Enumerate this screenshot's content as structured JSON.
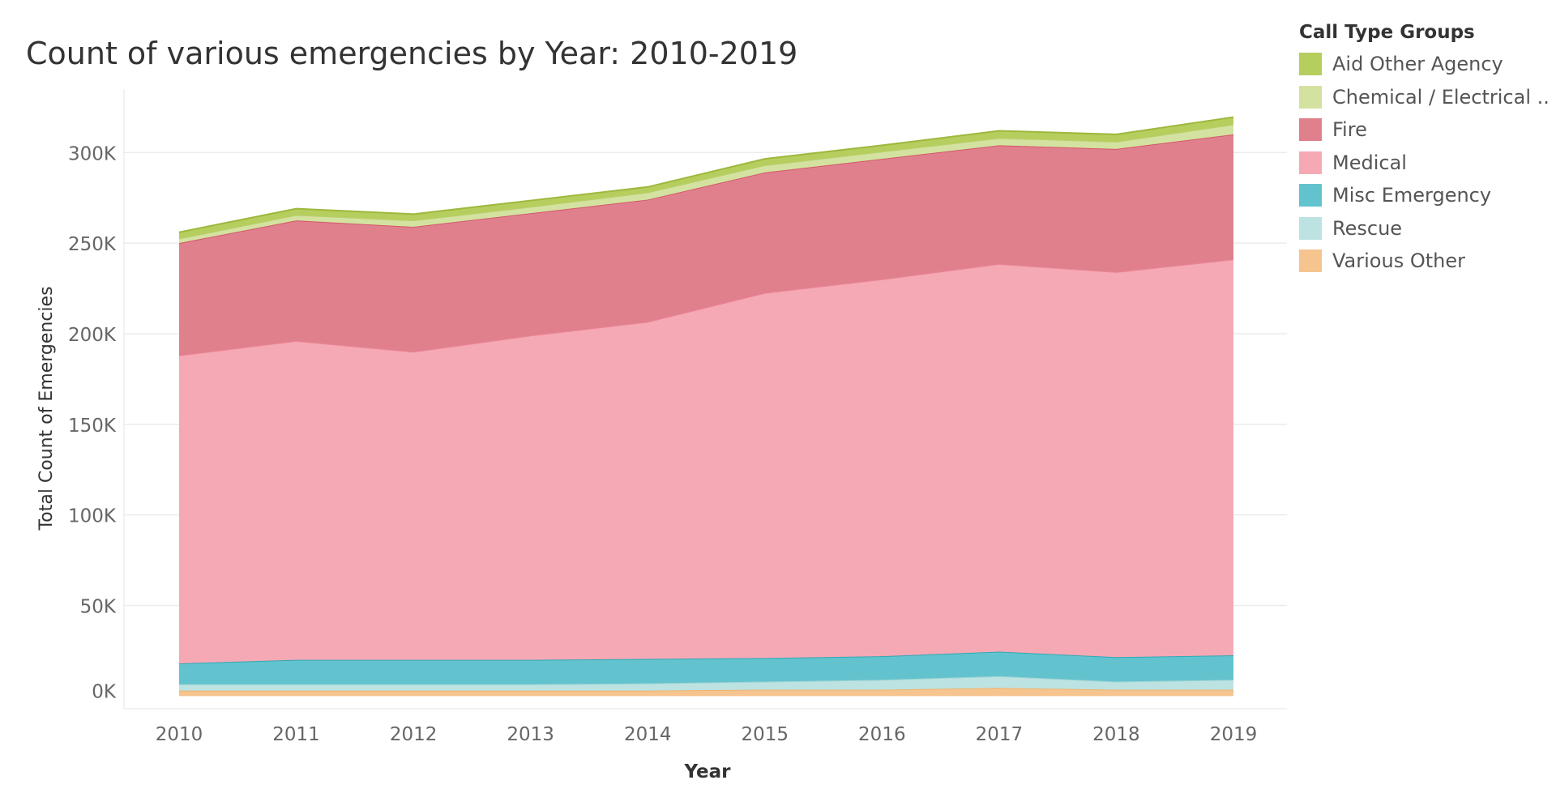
{
  "chart_data": {
    "type": "area",
    "stacked": true,
    "title": "Count of various emergencies by Year: 2010-2019",
    "xlabel": "Year",
    "ylabel": "Total Count of Emergencies",
    "x": [
      2010,
      2011,
      2012,
      2013,
      2014,
      2015,
      2016,
      2017,
      2018,
      2019
    ],
    "ylim": [
      -7000,
      335000
    ],
    "yticks": [
      0,
      50000,
      100000,
      150000,
      200000,
      250000,
      300000
    ],
    "ytick_labels": [
      "0K",
      "50K",
      "100K",
      "150K",
      "200K",
      "250K",
      "300K"
    ],
    "grid": "horizontal",
    "legend": {
      "title": "Call Type Groups",
      "placement": "right"
    },
    "series": [
      {
        "name": "Various Other",
        "color": "#F5C48F",
        "line": "#F2B36E",
        "values": [
          3000,
          3000,
          3000,
          3000,
          3000,
          3500,
          3500,
          4500,
          3500,
          3500
        ]
      },
      {
        "name": "Rescue",
        "color": "#BDE2E2",
        "line": "#9FD3D3",
        "values": [
          3500,
          3500,
          3500,
          3500,
          4000,
          4500,
          5500,
          6500,
          4500,
          5500
        ]
      },
      {
        "name": "Misc Emergency",
        "color": "#62C3CE",
        "line": "#2FA9B6",
        "values": [
          11500,
          13500,
          13500,
          13500,
          13500,
          13000,
          13000,
          13500,
          13500,
          13500
        ]
      },
      {
        "name": "Medical",
        "color": "#F5A9B5",
        "line": "#EC8596",
        "values": [
          170000,
          176000,
          170000,
          179000,
          186000,
          201500,
          208000,
          214000,
          212500,
          218500
        ]
      },
      {
        "name": "Fire",
        "color": "#E0808D",
        "line": "#D4576B",
        "values": [
          62000,
          66500,
          69000,
          67500,
          67500,
          66500,
          66500,
          65500,
          68000,
          69000
        ]
      },
      {
        "name": "Chemical / Electrical ..",
        "color": "#D3E2A0",
        "line": "#BACF6B",
        "values": [
          2500,
          3000,
          3500,
          3500,
          4000,
          4000,
          4000,
          4000,
          4000,
          5500
        ]
      },
      {
        "name": "Aid Other Agency",
        "color": "#B5CE5E",
        "line": "#9DB83C",
        "values": [
          3500,
          3500,
          3500,
          3500,
          3000,
          3500,
          3500,
          4000,
          4000,
          4000
        ]
      }
    ]
  }
}
